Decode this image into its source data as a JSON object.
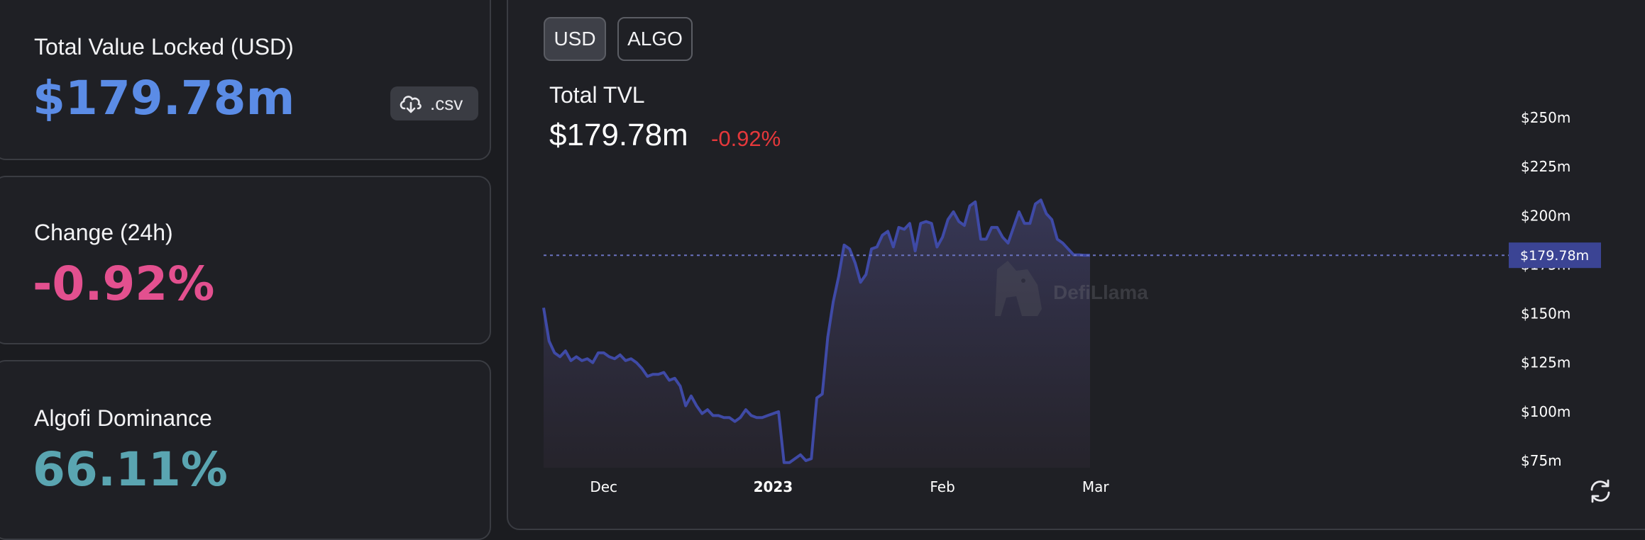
{
  "stats": {
    "tvl": {
      "label": "Total Value Locked (USD)",
      "value": "$179.78m",
      "color": "#5b8ce6"
    },
    "change": {
      "label": "Change (24h)",
      "value": "-0.92%",
      "color": "#e3508f"
    },
    "dominance": {
      "label": "Algofi Dominance",
      "value": "66.11%",
      "color": "#5aa5b1"
    },
    "csv_label": ".csv"
  },
  "chart_header": {
    "toggle_usd": "USD",
    "toggle_algo": "ALGO",
    "title": "Total TVL",
    "value": "$179.78m",
    "change": "-0.92%"
  },
  "watermark": "DefiLlama",
  "icons": {
    "csv": "cloud-download-icon",
    "refresh": "refresh-icon",
    "watermark": "llama-logo-icon"
  },
  "colors": {
    "line": "#3f4aa6",
    "accent_label": "#3b4494",
    "negative": "#e5383b"
  },
  "chart_data": {
    "type": "area",
    "title": "Total TVL",
    "x": [
      "2022-11-20",
      "2022-11-21",
      "2022-11-22",
      "2022-11-23",
      "2022-11-24",
      "2022-11-25",
      "2022-11-26",
      "2022-11-27",
      "2022-11-28",
      "2022-11-29",
      "2022-11-30",
      "2022-12-01",
      "2022-12-02",
      "2022-12-03",
      "2022-12-04",
      "2022-12-05",
      "2022-12-06",
      "2022-12-07",
      "2022-12-08",
      "2022-12-09",
      "2022-12-10",
      "2022-12-11",
      "2022-12-12",
      "2022-12-13",
      "2022-12-14",
      "2022-12-15",
      "2022-12-16",
      "2022-12-17",
      "2022-12-18",
      "2022-12-19",
      "2022-12-20",
      "2022-12-21",
      "2022-12-22",
      "2022-12-23",
      "2022-12-24",
      "2022-12-25",
      "2022-12-26",
      "2022-12-27",
      "2022-12-28",
      "2022-12-29",
      "2022-12-30",
      "2022-12-31",
      "2023-01-01",
      "2023-01-02",
      "2023-01-03",
      "2023-01-04",
      "2023-01-05",
      "2023-01-06",
      "2023-01-07",
      "2023-01-08",
      "2023-01-09",
      "2023-01-10",
      "2023-01-11",
      "2023-01-12",
      "2023-01-13",
      "2023-01-14",
      "2023-01-15",
      "2023-01-16",
      "2023-01-17",
      "2023-01-18",
      "2023-01-19",
      "2023-01-20",
      "2023-01-21",
      "2023-01-22",
      "2023-01-23",
      "2023-01-24",
      "2023-01-25",
      "2023-01-26",
      "2023-01-27",
      "2023-01-28",
      "2023-01-29",
      "2023-01-30",
      "2023-01-31",
      "2023-02-01",
      "2023-02-02",
      "2023-02-03",
      "2023-02-04",
      "2023-02-05",
      "2023-02-06",
      "2023-02-07",
      "2023-02-08",
      "2023-02-09",
      "2023-02-10",
      "2023-02-11",
      "2023-02-12",
      "2023-02-13",
      "2023-02-14",
      "2023-02-15",
      "2023-02-16",
      "2023-02-17",
      "2023-02-18",
      "2023-02-19",
      "2023-02-20",
      "2023-02-21",
      "2023-02-22",
      "2023-02-23",
      "2023-02-24",
      "2023-02-25",
      "2023-02-26",
      "2023-02-27",
      "2023-02-28"
    ],
    "values": [
      153,
      136,
      130,
      128,
      131,
      126,
      128,
      126,
      127,
      125,
      130,
      130,
      128,
      127,
      129,
      126,
      127,
      125,
      122,
      118,
      119,
      119,
      120,
      116,
      117,
      113,
      103,
      108,
      103,
      99,
      101,
      98,
      98,
      97,
      97,
      95,
      97,
      101,
      98,
      97,
      97,
      98,
      99,
      100,
      74,
      74,
      76,
      78,
      75,
      76,
      107,
      109,
      138,
      156,
      169,
      185,
      183,
      176,
      166,
      170,
      183,
      184,
      190,
      192,
      184,
      194,
      193,
      196,
      182,
      196,
      197,
      196,
      184,
      189,
      198,
      202,
      197,
      195,
      205,
      207,
      188,
      188,
      194,
      194,
      189,
      186,
      194,
      202,
      196,
      196,
      206,
      208,
      201,
      198,
      188,
      186,
      183,
      180,
      180,
      179.78,
      179.78
    ],
    "xticks": [
      "Dec",
      "2023",
      "Feb",
      "Mar"
    ],
    "yticks": [
      "$75m",
      "$100m",
      "$125m",
      "$150m",
      "$175m",
      "$200m",
      "$225m",
      "$250m"
    ],
    "ylim": [
      75,
      250
    ],
    "current_value_label": "$179.78m",
    "grid": false
  }
}
